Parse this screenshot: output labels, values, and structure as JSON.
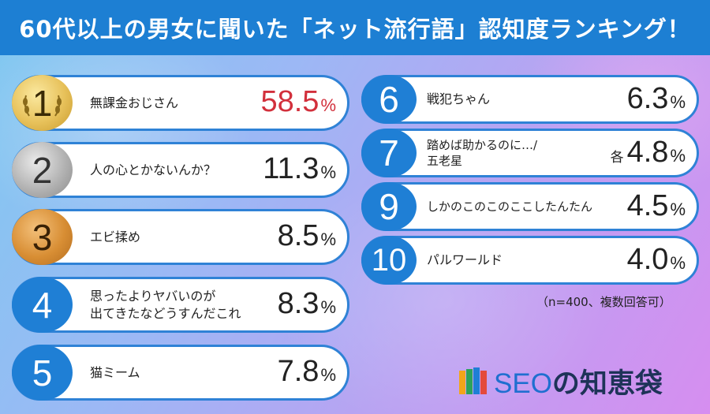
{
  "title": "60代以上の男女に聞いた「ネット流行語」認知度ランキング！",
  "colors": {
    "header": "#1d7fd3",
    "border": "#2f82d6",
    "accent_red": "#d2303c"
  },
  "rankings": [
    {
      "rank": "1",
      "label": "無課金おじさん",
      "value": "58.5",
      "unit": "%"
    },
    {
      "rank": "2",
      "label": "人の心とかないんか？",
      "value": "11.3",
      "unit": "%"
    },
    {
      "rank": "3",
      "label": "エビ揉め",
      "value": "8.5",
      "unit": "%"
    },
    {
      "rank": "4",
      "label_line1": "思ったよりヤバいのが",
      "label_line2": "出てきたなどうすんだこれ",
      "value": "8.3",
      "unit": "%"
    },
    {
      "rank": "5",
      "label": "猫ミーム",
      "value": "7.8",
      "unit": "%"
    },
    {
      "rank": "6",
      "label": "戦犯ちゃん",
      "value": "6.3",
      "unit": "%"
    },
    {
      "rank": "7",
      "label_line1": "踏めば助かるのに…/",
      "label_line2": "五老星",
      "tie": "各",
      "value": "4.8",
      "unit": "%"
    },
    {
      "rank": "9",
      "label": "しかのこのこのここしたんたん",
      "value": "4.5",
      "unit": "%"
    },
    {
      "rank": "10",
      "label": "パルワールド",
      "value": "4.0",
      "unit": "%"
    }
  ],
  "note": "（n=400、複数回答可）",
  "logo": {
    "seo": "SEO",
    "rest": "の知恵袋",
    "icon": "book-stack-icon"
  }
}
